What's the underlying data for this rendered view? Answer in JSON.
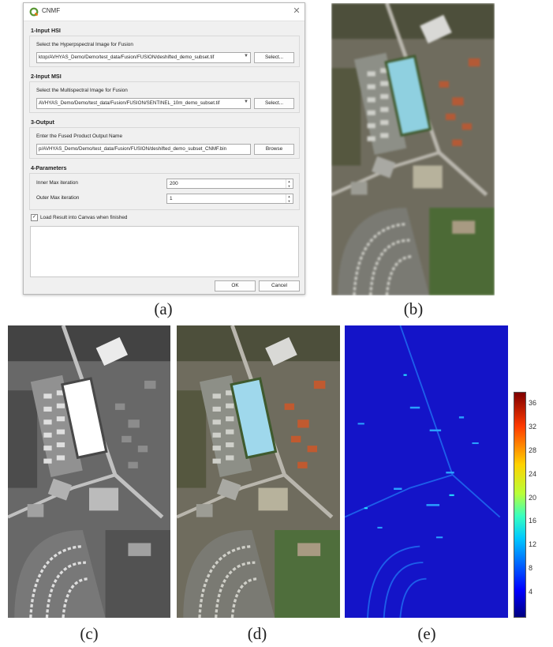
{
  "dialog": {
    "title": "CNMF",
    "close_glyph": "✕",
    "sections": {
      "input_hsi": {
        "header": "1-Input HSI",
        "label": "Select the Hyperpspectral Image for Fusion",
        "value": "ktop/AVHYAS_Demo/Demo/test_data/Fusion/FUSION/deshifted_demo_subset.tif",
        "button": "Select..."
      },
      "input_msi": {
        "header": "2-Input MSI",
        "label": "Select the Multispectral Image for Fusion",
        "value": "AVHYAS_Demo/Demo/test_data/Fusion/FUSION/SENTINEL_10m_demo_subset.tif",
        "button": "Select..."
      },
      "output": {
        "header": "3-Output",
        "label": "Enter the Fused Product Output Name",
        "value": "p/AVHYAS_Demo/Demo/test_data/Fusion/FUSION/deshifted_demo_subset_CNMF.bin",
        "button": "Browse"
      },
      "parameters": {
        "header": "4-Parameters",
        "inner_label": "Inner Max iteration",
        "inner_value": "200",
        "outer_label": "Outer Max iteration",
        "outer_value": "1"
      }
    },
    "load_checkbox": {
      "checked": true,
      "mark": "✓",
      "label": "Load Result into Canvas when finished"
    },
    "ok_button": "OK",
    "cancel_button": "Cancel"
  },
  "captions": {
    "a": "(a)",
    "b": "(b)",
    "c": "(c)",
    "d": "(d)",
    "e": "(e)"
  },
  "colorbar": {
    "ticks": [
      "36",
      "32",
      "28",
      "24",
      "20",
      "16",
      "12",
      "8",
      "4"
    ],
    "min": 0,
    "max": 38
  },
  "colors": {
    "qgis_green": "#589632",
    "error_map_base": "#1a1ad8",
    "dialog_bg": "#f0f0f0"
  }
}
